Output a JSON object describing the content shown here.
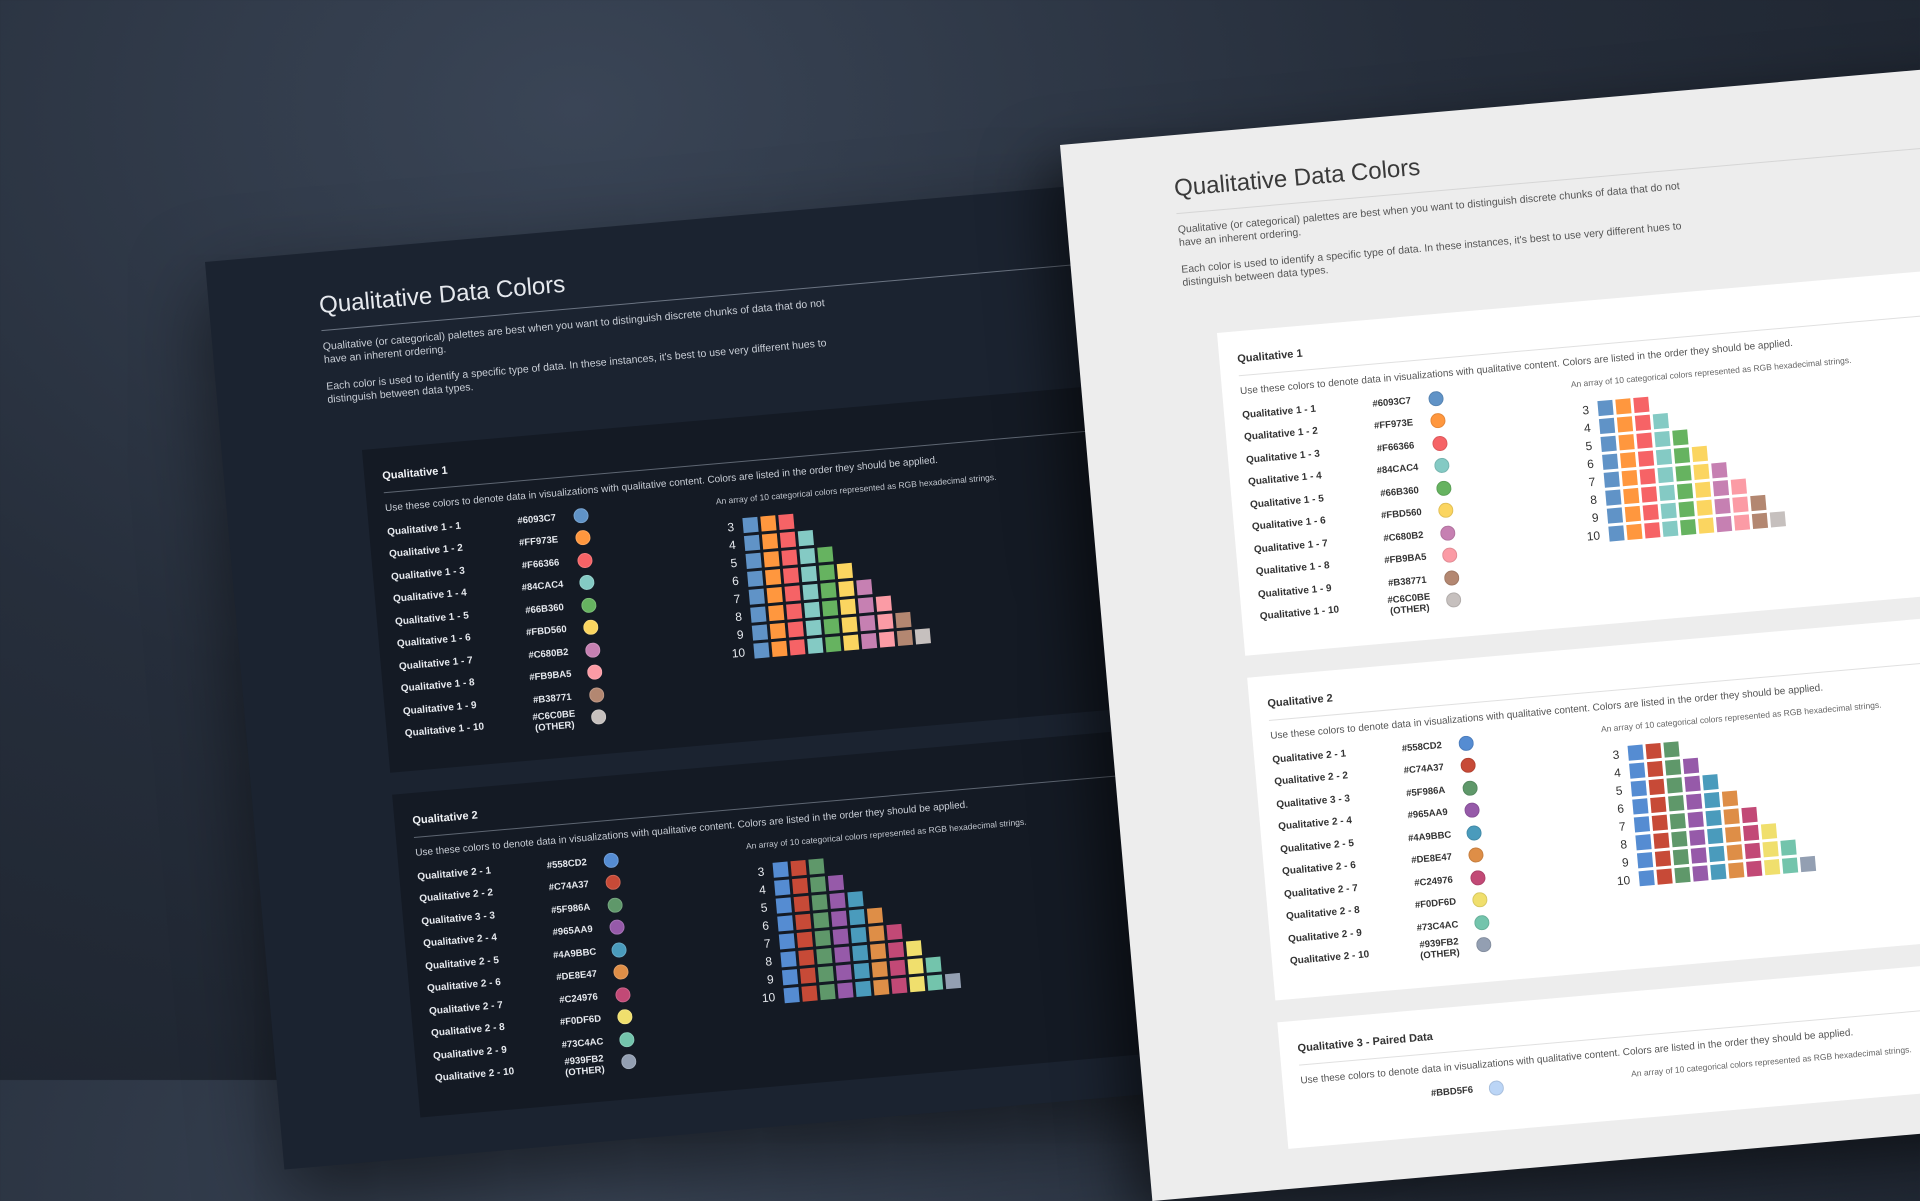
{
  "pages": [
    {
      "theme": "dark",
      "title": "Qualitative Data Colors",
      "intro1": "Qualitative (or categorical) palettes are best when you want to distinguish discrete chunks of data that do not have an inherent ordering.",
      "intro2": "Each color is used to identify a specific type of data. In these instances, it's best to use very different hues to distinguish between data types."
    },
    {
      "theme": "light",
      "title": "Qualitative Data Colors",
      "intro1": "Qualitative (or categorical) palettes are best when you want to distinguish discrete chunks of data that do not have an inherent ordering.",
      "intro2": "Each color is used to identify a specific type of data. In these instances, it's best to use very different hues to distinguish between data types."
    }
  ],
  "card_desc": "Use these colors to denote data in visualizations with qualitative content. Colors are listed in the order they should be applied.",
  "array_caption": "An array of 10 categorical colors represented as RGB hexadecimal strings.",
  "array_row_labels": [
    "3",
    "4",
    "5",
    "6",
    "7",
    "8",
    "9",
    "10"
  ],
  "palettes": [
    {
      "title": "Qualitative 1",
      "colors": [
        {
          "name": "Qualitative 1 - 1",
          "hex": "#6093C7"
        },
        {
          "name": "Qualitative 1 - 2",
          "hex": "#FF973E"
        },
        {
          "name": "Qualitative 1 - 3",
          "hex": "#F66366"
        },
        {
          "name": "Qualitative 1 - 4",
          "hex": "#84CAC4"
        },
        {
          "name": "Qualitative 1 - 5",
          "hex": "#66B360"
        },
        {
          "name": "Qualitative 1 - 6",
          "hex": "#FBD560"
        },
        {
          "name": "Qualitative 1 - 7",
          "hex": "#C680B2"
        },
        {
          "name": "Qualitative 1 - 8",
          "hex": "#FB9BA5"
        },
        {
          "name": "Qualitative 1 - 9",
          "hex": "#B38771"
        },
        {
          "name": "Qualitative 1 - 10",
          "hex": "#C6C0BE",
          "note": "(OTHER)"
        }
      ]
    },
    {
      "title": "Qualitative 2",
      "colors": [
        {
          "name": "Qualitative 2 - 1",
          "hex": "#558CD2"
        },
        {
          "name": "Qualitative 2 - 2",
          "hex": "#C74A37"
        },
        {
          "name": "Qualitative 3 - 3",
          "hex": "#5F986A"
        },
        {
          "name": "Qualitative 2 - 4",
          "hex": "#965AA9"
        },
        {
          "name": "Qualitative 2 - 5",
          "hex": "#4A9BBC"
        },
        {
          "name": "Qualitative 2 - 6",
          "hex": "#DE8E47"
        },
        {
          "name": "Qualitative 2 - 7",
          "hex": "#C24976"
        },
        {
          "name": "Qualitative 2 - 8",
          "hex": "#F0DF6D"
        },
        {
          "name": "Qualitative 2 - 9",
          "hex": "#73C4AC"
        },
        {
          "name": "Qualitative 2 - 10",
          "hex": "#939FB2",
          "note": "(OTHER)"
        }
      ]
    },
    {
      "title": "Qualitative 3 - Paired Data",
      "colors": [
        {
          "name": "",
          "hex": "#BBD5F6"
        }
      ]
    }
  ],
  "palette_dot_colors": {
    "p1": [
      "#6093C7",
      "#FF973E",
      "#F66366",
      "#84CAC4",
      "#66B360",
      "#FBD560",
      "#C680B2",
      "#FB9BA5",
      "#B38771",
      "#C6C0BE"
    ],
    "p2": [
      "#558CD2",
      "#C74A37",
      "#5F986A",
      "#965AA9",
      "#4A9BBC",
      "#DE8E47",
      "#C24976",
      "#F0DF6D",
      "#73C4AC",
      "#939FB2"
    ]
  }
}
